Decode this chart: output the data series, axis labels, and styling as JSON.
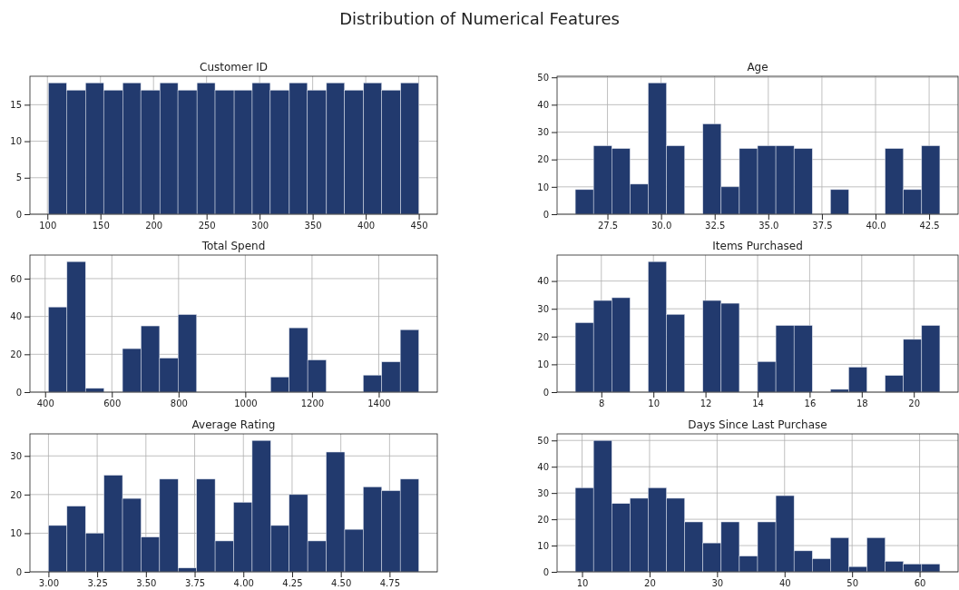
{
  "chart_data": [
    {
      "type": "other",
      "title": "Distribution of Numerical Features"
    },
    {
      "type": "histogram",
      "title": "Customer ID",
      "color": "#223a6e",
      "grid": true,
      "bins": [
        101,
        118,
        136,
        153,
        171,
        188,
        206,
        223,
        241,
        258,
        276,
        293,
        310,
        328,
        345,
        363,
        380,
        398,
        415,
        433,
        450
      ],
      "values": [
        18,
        17,
        18,
        17,
        18,
        17,
        18,
        17,
        18,
        17,
        17,
        18,
        17,
        18,
        17,
        18,
        17,
        18,
        17,
        18
      ],
      "xlim": [
        83.55,
        467.45
      ],
      "xticks": [
        100,
        150,
        200,
        250,
        300,
        350,
        400,
        450
      ],
      "ylim": [
        0,
        18.9
      ],
      "yticks": [
        0,
        5,
        10,
        15
      ]
    },
    {
      "type": "histogram",
      "title": "Age",
      "color": "#223a6e",
      "grid": true,
      "bins": [
        26,
        26.85,
        27.7,
        28.55,
        29.4,
        30.25,
        31.1,
        31.95,
        32.8,
        33.65,
        34.5,
        35.35,
        36.2,
        37.05,
        37.9,
        38.75,
        39.6,
        40.45,
        41.3,
        42.15,
        43
      ],
      "values": [
        9,
        25,
        24,
        11,
        48,
        25,
        0,
        33,
        10,
        24,
        25,
        25,
        24,
        0,
        9,
        0,
        0,
        24,
        9,
        25
      ],
      "xlim": [
        25.15,
        43.85
      ],
      "xticks": [
        {
          "value": 27.5,
          "label": "27.5"
        },
        {
          "value": 30,
          "label": "30.0"
        },
        {
          "value": 32.5,
          "label": "32.5"
        },
        {
          "value": 35,
          "label": "35.0"
        },
        {
          "value": 37.5,
          "label": "37.5"
        },
        {
          "value": 40,
          "label": "40.0"
        },
        {
          "value": 42.5,
          "label": "42.5"
        }
      ],
      "ylim": [
        0,
        50.4
      ],
      "yticks": [
        0,
        10,
        20,
        30,
        40,
        50
      ]
    },
    {
      "type": "histogram",
      "title": "Total Spend",
      "color": "#223a6e",
      "grid": true,
      "bins": [
        410,
        465.5,
        521,
        576.5,
        632,
        687.5,
        743,
        798.5,
        854,
        909.5,
        965,
        1020.5,
        1076,
        1131.5,
        1187,
        1242.5,
        1298,
        1353.5,
        1409,
        1464.5,
        1520
      ],
      "values": [
        45,
        69,
        2,
        0,
        23,
        35,
        18,
        41,
        0,
        0,
        0,
        0,
        8,
        34,
        17,
        0,
        0,
        9,
        16,
        33
      ],
      "xlim": [
        354.5,
        1575.5
      ],
      "xticks": [
        400,
        600,
        800,
        1000,
        1200,
        1400
      ],
      "ylim": [
        0,
        72.45
      ],
      "yticks": [
        0,
        20,
        40,
        60
      ]
    },
    {
      "type": "histogram",
      "title": "Items Purchased",
      "color": "#223a6e",
      "grid": true,
      "bins": [
        7,
        7.7,
        8.4,
        9.1,
        9.8,
        10.5,
        11.2,
        11.9,
        12.6,
        13.3,
        14,
        14.7,
        15.4,
        16.1,
        16.8,
        17.5,
        18.2,
        18.9,
        19.6,
        20.3,
        21
      ],
      "values": [
        25,
        33,
        34,
        0,
        47,
        28,
        0,
        33,
        32,
        0,
        11,
        24,
        24,
        0,
        1,
        9,
        0,
        6,
        19,
        24
      ],
      "xlim": [
        6.3,
        21.7
      ],
      "xticks": [
        8,
        10,
        12,
        14,
        16,
        18,
        20
      ],
      "ylim": [
        0,
        49.35
      ],
      "yticks": [
        0,
        10,
        20,
        30,
        40
      ]
    },
    {
      "type": "histogram",
      "title": "Average Rating",
      "color": "#223a6e",
      "grid": true,
      "bins": [
        3,
        3.095,
        3.19,
        3.285,
        3.38,
        3.475,
        3.57,
        3.665,
        3.76,
        3.855,
        3.95,
        4.045,
        4.14,
        4.235,
        4.33,
        4.425,
        4.52,
        4.615,
        4.71,
        4.805,
        4.9
      ],
      "values": [
        12,
        17,
        10,
        25,
        19,
        9,
        24,
        1,
        24,
        8,
        18,
        34,
        12,
        20,
        8,
        31,
        11,
        22,
        21,
        24
      ],
      "xlim": [
        2.905,
        4.995
      ],
      "xticks": [
        {
          "value": 3,
          "label": "3.00"
        },
        {
          "value": 3.25,
          "label": "3.25"
        },
        {
          "value": 3.5,
          "label": "3.50"
        },
        {
          "value": 3.75,
          "label": "3.75"
        },
        {
          "value": 4,
          "label": "4.00"
        },
        {
          "value": 4.25,
          "label": "4.25"
        },
        {
          "value": 4.5,
          "label": "4.50"
        },
        {
          "value": 4.75,
          "label": "4.75"
        }
      ],
      "ylim": [
        0,
        35.7
      ],
      "yticks": [
        0,
        10,
        20,
        30
      ]
    },
    {
      "type": "histogram",
      "title": "Days Since Last Purchase",
      "color": "#223a6e",
      "grid": true,
      "bins": [
        9,
        11.7,
        14.4,
        17.1,
        19.8,
        22.5,
        25.2,
        27.9,
        30.6,
        33.3,
        36,
        38.7,
        41.4,
        44.1,
        46.8,
        49.5,
        52.2,
        54.9,
        57.6,
        60.3,
        63
      ],
      "values": [
        32,
        50,
        26,
        28,
        32,
        28,
        19,
        11,
        19,
        6,
        19,
        29,
        8,
        5,
        13,
        2,
        13,
        4,
        3,
        3
      ],
      "xlim": [
        6.3,
        65.7
      ],
      "xticks": [
        10,
        20,
        30,
        40,
        50,
        60
      ],
      "ylim": [
        0,
        52.5
      ],
      "yticks": [
        0,
        10,
        20,
        30,
        40,
        50
      ]
    }
  ]
}
